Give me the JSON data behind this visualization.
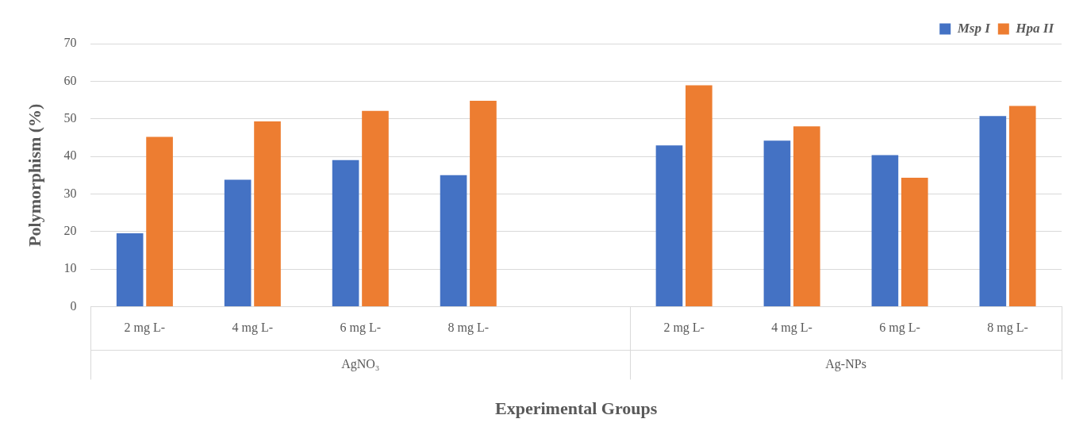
{
  "chart_data": {
    "type": "bar",
    "xlabel": "Experimental Groups",
    "ylabel": "Polymorphism (%)",
    "categories": [
      "2 mg L-",
      "4 mg L-",
      "6 mg L-",
      "8 mg L-",
      null,
      "2 mg L-",
      "4 mg L-",
      "6 mg L-",
      "8 mg L-"
    ],
    "series": [
      {
        "name": "Msp I",
        "color": "#4472c4",
        "values": [
          19.5,
          33.8,
          39,
          35,
          null,
          42.9,
          44.2,
          40.3,
          50.7
        ]
      },
      {
        "name": "Hpa II",
        "color": "#ed7d31",
        "values": [
          45.2,
          49.3,
          52.1,
          54.8,
          null,
          58.9,
          48,
          34.3,
          53.4
        ]
      }
    ],
    "annotations": [
      "AgNO₃",
      "Ag-NPs"
    ],
    "ylim": [
      0,
      70
    ],
    "yticks": [
      0,
      10,
      20,
      30,
      40,
      50,
      60,
      70
    ],
    "grid": "y",
    "legend": "top right"
  }
}
